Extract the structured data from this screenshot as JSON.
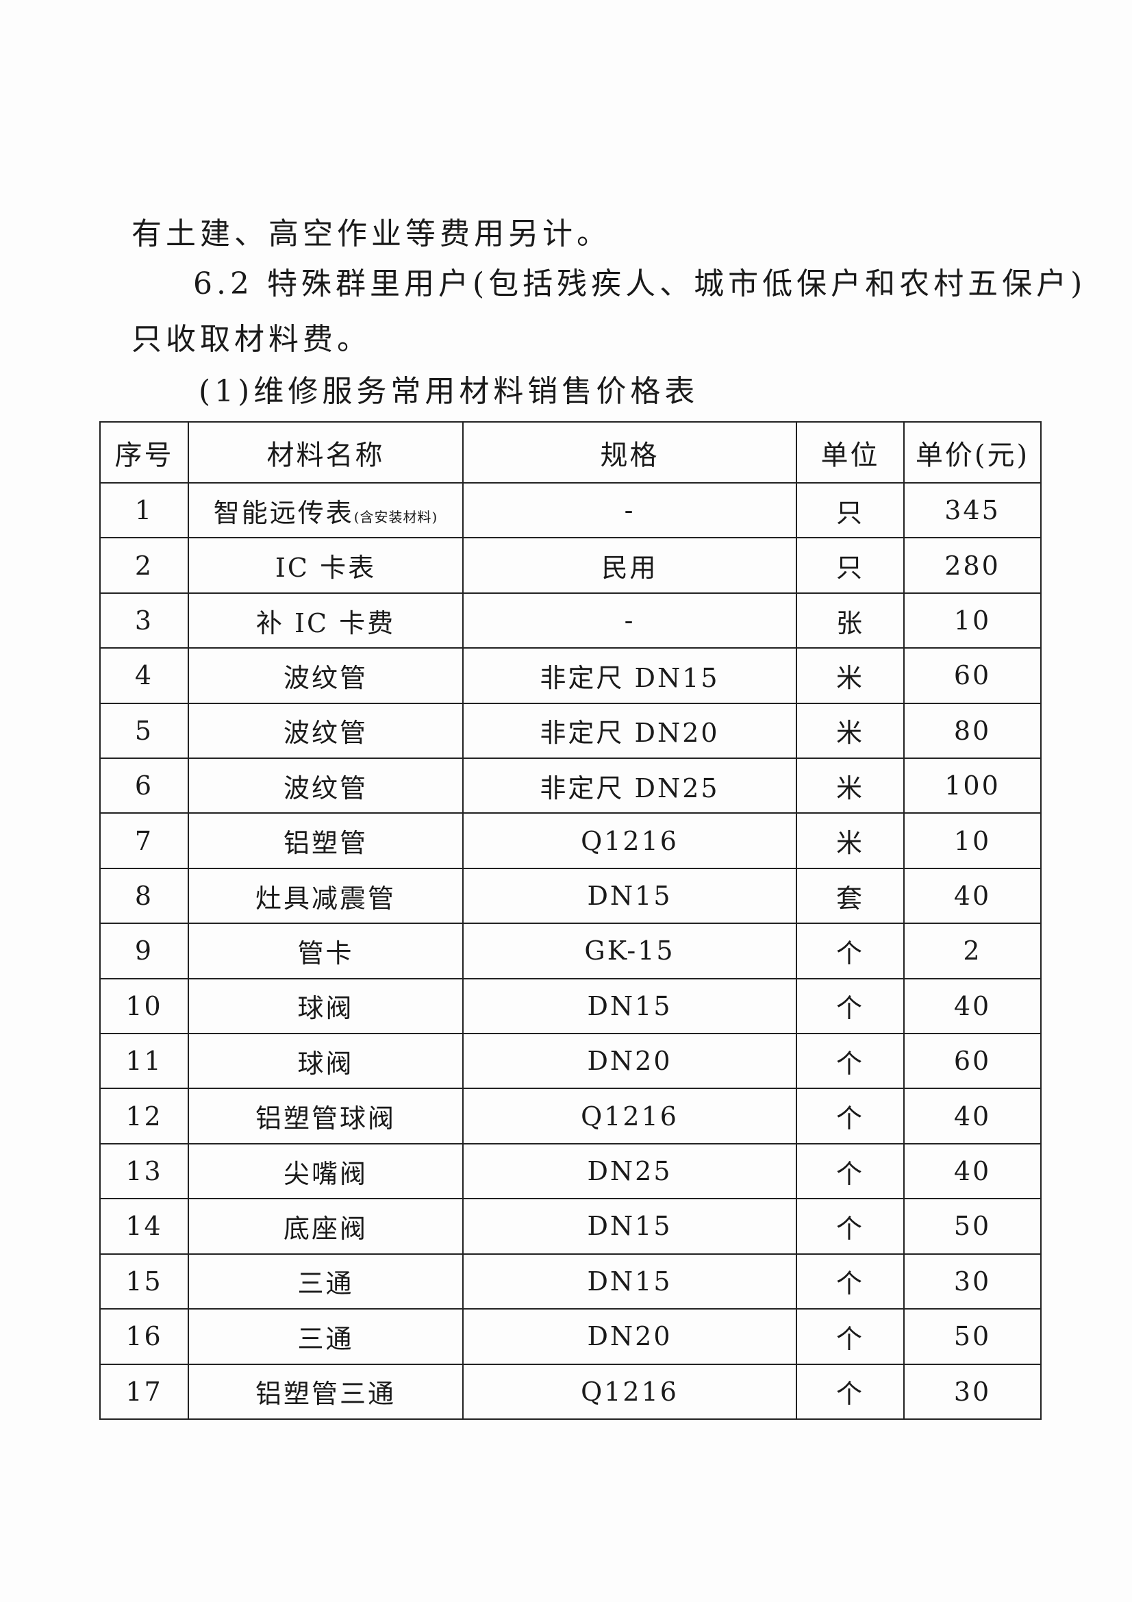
{
  "paragraphs": [
    "有土建、高空作业等费用另计。",
    "6.2 特殊群里用户(包括残疾人、城市低保户和农村五保户)",
    "只收取材料费。"
  ],
  "table_caption": "(1)维修服务常用材料销售价格表",
  "table": {
    "headers": [
      "序号",
      "材料名称",
      "规格",
      "单位",
      "单价(元)"
    ],
    "rows": [
      {
        "no": "1",
        "name": "智能远传表",
        "note": "(含安装材料)",
        "spec": "-",
        "unit": "只",
        "price": "345"
      },
      {
        "no": "2",
        "name": "IC 卡表",
        "note": "",
        "spec": "民用",
        "unit": "只",
        "price": "280"
      },
      {
        "no": "3",
        "name": "补 IC 卡费",
        "note": "",
        "spec": "-",
        "unit": "张",
        "price": "10"
      },
      {
        "no": "4",
        "name": "波纹管",
        "note": "",
        "spec": "非定尺 DN15",
        "unit": "米",
        "price": "60"
      },
      {
        "no": "5",
        "name": "波纹管",
        "note": "",
        "spec": "非定尺 DN20",
        "unit": "米",
        "price": "80"
      },
      {
        "no": "6",
        "name": "波纹管",
        "note": "",
        "spec": "非定尺 DN25",
        "unit": "米",
        "price": "100"
      },
      {
        "no": "7",
        "name": "铝塑管",
        "note": "",
        "spec": "Q1216",
        "unit": "米",
        "price": "10"
      },
      {
        "no": "8",
        "name": "灶具减震管",
        "note": "",
        "spec": "DN15",
        "unit": "套",
        "price": "40"
      },
      {
        "no": "9",
        "name": "管卡",
        "note": "",
        "spec": "GK-15",
        "unit": "个",
        "price": "2"
      },
      {
        "no": "10",
        "name": "球阀",
        "note": "",
        "spec": "DN15",
        "unit": "个",
        "price": "40"
      },
      {
        "no": "11",
        "name": "球阀",
        "note": "",
        "spec": "DN20",
        "unit": "个",
        "price": "60"
      },
      {
        "no": "12",
        "name": "铝塑管球阀",
        "note": "",
        "spec": "Q1216",
        "unit": "个",
        "price": "40"
      },
      {
        "no": "13",
        "name": "尖嘴阀",
        "note": "",
        "spec": "DN25",
        "unit": "个",
        "price": "40"
      },
      {
        "no": "14",
        "name": "底座阀",
        "note": "",
        "spec": "DN15",
        "unit": "个",
        "price": "50"
      },
      {
        "no": "15",
        "name": "三通",
        "note": "",
        "spec": "DN15",
        "unit": "个",
        "price": "30"
      },
      {
        "no": "16",
        "name": "三通",
        "note": "",
        "spec": "DN20",
        "unit": "个",
        "price": "50"
      },
      {
        "no": "17",
        "name": "铝塑管三通",
        "note": "",
        "spec": "Q1216",
        "unit": "个",
        "price": "30"
      }
    ]
  }
}
